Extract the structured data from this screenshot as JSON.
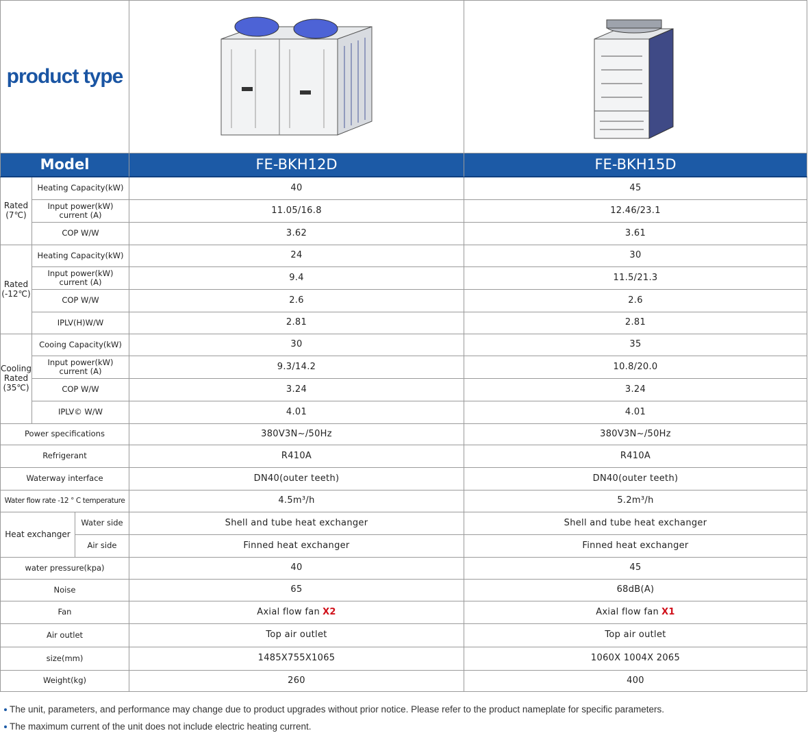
{
  "header": {
    "title": "product type",
    "model_label": "Model",
    "models": [
      "FE-BKH12D",
      "FE-BKH15D"
    ]
  },
  "sections": [
    {
      "label": [
        "Rated",
        "(7℃)"
      ],
      "rows": [
        {
          "label": "Heating Capacity(kW)",
          "values": [
            "40",
            "45"
          ]
        },
        {
          "label": [
            "Input power(kW)",
            "current (A)"
          ],
          "values": [
            "11.05/16.8",
            "12.46/23.1"
          ]
        },
        {
          "label": "COP W/W",
          "values": [
            "3.62",
            "3.61"
          ]
        }
      ]
    },
    {
      "label": [
        "Rated",
        "(-12℃)"
      ],
      "rows": [
        {
          "label": "Heating Capacity(kW)",
          "values": [
            "24",
            "30"
          ]
        },
        {
          "label": [
            "Input power(kW)",
            "current (A)"
          ],
          "values": [
            "9.4",
            "11.5/21.3"
          ]
        },
        {
          "label": "COP W/W",
          "values": [
            "2.6",
            "2.6"
          ]
        },
        {
          "label": "IPLV(H)W/W",
          "values": [
            "2.81",
            "2.81"
          ]
        }
      ]
    },
    {
      "label": [
        "Cooling",
        "Rated",
        "(35℃)"
      ],
      "rows": [
        {
          "label": "Cooing Capacity(kW)",
          "values": [
            "30",
            "35"
          ]
        },
        {
          "label": [
            "Input power(kW)",
            "current (A)"
          ],
          "values": [
            "9.3/14.2",
            "10.8/20.0"
          ]
        },
        {
          "label": "COP W/W",
          "values": [
            "3.24",
            "3.24"
          ]
        },
        {
          "label": "IPLV© W/W",
          "values": [
            "4.01",
            "4.01"
          ]
        }
      ]
    },
    {
      "rows": [
        {
          "label": "Power specifications",
          "values": [
            "380V3N~/50Hz",
            "380V3N~/50Hz"
          ]
        },
        {
          "label": "Refrigerant",
          "values": [
            "R410A",
            "R410A"
          ]
        },
        {
          "label": "Waterway interface",
          "values": [
            "DN40(outer teeth)",
            "DN40(outer teeth)"
          ]
        },
        {
          "label": "Water flow rate -12 ° C temperature",
          "values": [
            "4.5m³/h",
            "5.2m³/h"
          ]
        }
      ]
    },
    {
      "label": "Heat exchanger",
      "rows": [
        {
          "label": "Water side",
          "values": [
            "Shell and tube heat exchanger",
            "Shell and tube heat exchanger"
          ]
        },
        {
          "label": "Air side",
          "values": [
            "Finned heat exchanger",
            "Finned heat exchanger"
          ]
        }
      ]
    },
    {
      "rows": [
        {
          "label": "water pressure(kpa)",
          "values": [
            "40",
            "45"
          ]
        },
        {
          "label": "Noise",
          "values": [
            "65",
            "68dB(A)"
          ]
        },
        {
          "label": "Fan",
          "values": [
            {
              "text": "Axial flow fan",
              "highlight": "X2"
            },
            {
              "text": "Axial flow fan",
              "highlight": "X1"
            }
          ]
        },
        {
          "label": "Air outlet",
          "values": [
            "Top air outlet",
            "Top air outlet"
          ]
        },
        {
          "label": "size(mm)",
          "values": [
            "1485X755X1065",
            "1060X 1004X 2065"
          ]
        },
        {
          "label": "Weight(kg)",
          "values": [
            "260",
            "400"
          ]
        }
      ]
    }
  ],
  "notes": [
    "The unit, parameters, and performance may change due to product upgrades without prior notice. Please refer to the product nameplate for specific parameters.",
    "The maximum current of the unit does not include electric heating current."
  ]
}
